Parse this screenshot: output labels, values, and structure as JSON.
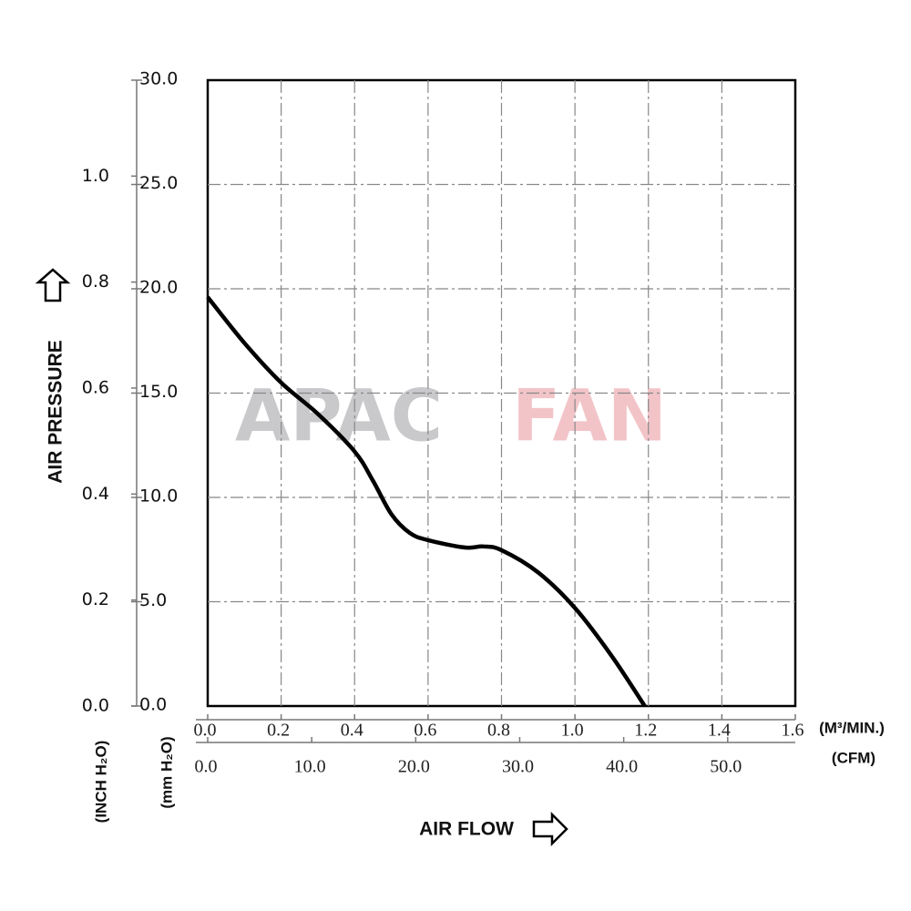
{
  "chart_data": {
    "type": "line",
    "y_label": "AIR PRESSURE",
    "x_label": "AIR FLOW",
    "y_unit": "(mm H₂O)",
    "y2_unit": "(INCH H₂O)",
    "x_unit": "(M³/MIN.)",
    "x2_unit": "(CFM)",
    "watermark": [
      "APAC",
      "FAN"
    ],
    "watermark_colors": [
      "#c9c9cc",
      "#f2c4c8"
    ],
    "x": [
      0,
      0.1,
      0.2,
      0.3,
      0.4,
      0.45,
      0.5,
      0.55,
      0.6,
      0.7,
      0.75,
      0.8,
      0.9,
      1.0,
      1.1,
      1.19
    ],
    "series": [
      {
        "color": "#000000",
        "values": [
          19.6,
          17.4,
          15.5,
          14.0,
          12.2,
          10.8,
          9.2,
          8.3,
          7.95,
          7.6,
          7.65,
          7.47,
          6.4,
          4.7,
          2.4,
          0
        ]
      }
    ],
    "xlim": [
      0,
      1.6
    ],
    "xticks": [
      {
        "value": 0,
        "label": "0.0"
      },
      0.2,
      0.4,
      0.6,
      0.8,
      {
        "value": 1,
        "label": "1.0"
      },
      1.2,
      1.4,
      1.6
    ],
    "x2lim": [
      0,
      56.5
    ],
    "x2ticks": [
      {
        "value": 0,
        "label": "0.0"
      },
      {
        "value": 10,
        "label": "10.0"
      },
      {
        "value": 20,
        "label": "20.0"
      },
      {
        "value": 30,
        "label": "30.0"
      },
      {
        "value": 40,
        "label": "40.0"
      },
      {
        "value": 50,
        "label": "50.0"
      }
    ],
    "ylim": [
      0,
      30
    ],
    "yticks": [
      {
        "value": 0,
        "label": "0.0"
      },
      {
        "value": 5,
        "label": "5.0"
      },
      {
        "value": 10,
        "label": "10.0"
      },
      {
        "value": 15,
        "label": "15.0"
      },
      {
        "value": 20,
        "label": "20.0"
      },
      {
        "value": 25,
        "label": "25.0"
      },
      {
        "value": 30,
        "label": "30.0"
      }
    ],
    "y2lim": [
      0,
      1.181
    ],
    "y2ticks": [
      {
        "value": 0,
        "label": "0.0"
      },
      0.2,
      0.4,
      0.6,
      0.8,
      {
        "value": 1,
        "label": "1.0"
      }
    ],
    "grid": true
  }
}
